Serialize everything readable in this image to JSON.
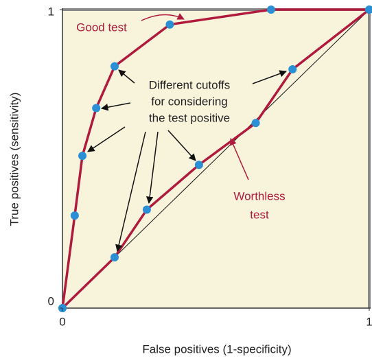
{
  "chart_data": {
    "type": "line",
    "xlabel": "False positives (1-specificity)",
    "ylabel": "True positives (sensitivity)",
    "xlim": [
      0,
      1
    ],
    "ylim": [
      0,
      1
    ],
    "xticks": [
      0,
      1
    ],
    "yticks": [
      0,
      1
    ],
    "series": [
      {
        "name": "Good test",
        "color": "#b01a3c",
        "x": [
          0,
          0.04,
          0.065,
          0.11,
          0.17,
          0.35,
          0.68,
          1
        ],
        "values": [
          0,
          0.31,
          0.51,
          0.67,
          0.81,
          0.95,
          1,
          1
        ]
      },
      {
        "name": "Worthless test",
        "color": "#b01a3c",
        "x": [
          0,
          0.17,
          0.275,
          0.445,
          0.63,
          0.75,
          1
        ],
        "values": [
          0,
          0.17,
          0.33,
          0.48,
          0.62,
          0.8,
          1
        ]
      }
    ],
    "marker_color": "#2a8fd4",
    "annotations": [
      [
        "Good test"
      ],
      [
        "Different cutoffs",
        "for considering",
        "the test positive"
      ],
      [
        "Worthless",
        "test"
      ]
    ]
  }
}
